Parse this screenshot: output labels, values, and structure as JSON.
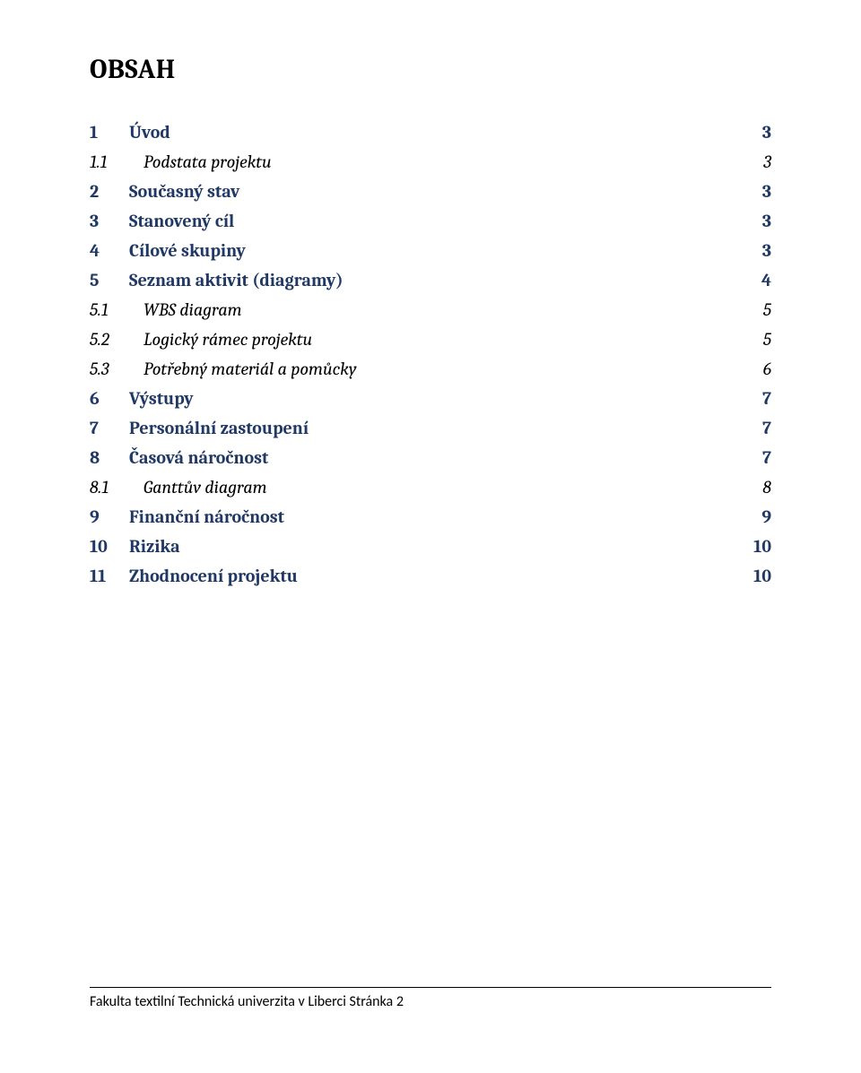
{
  "heading": "OBSAH",
  "toc": [
    {
      "num": "1",
      "title": "Úvod",
      "page": "3",
      "level": 1
    },
    {
      "num": "1.1",
      "title": "Podstata projektu",
      "page": "3",
      "level": 2
    },
    {
      "num": "2",
      "title": "Současný stav",
      "page": "3",
      "level": 1
    },
    {
      "num": "3",
      "title": "Stanovený cíl",
      "page": "3",
      "level": 1
    },
    {
      "num": "4",
      "title": "Cílové skupiny",
      "page": "3",
      "level": 1
    },
    {
      "num": "5",
      "title": "Seznam aktivit (diagramy)",
      "page": "4",
      "level": 1
    },
    {
      "num": "5.1",
      "title": "WBS diagram",
      "page": "5",
      "level": 2
    },
    {
      "num": "5.2",
      "title": "Logický rámec projektu",
      "page": "5",
      "level": 2
    },
    {
      "num": "5.3",
      "title": "Potřebný materiál a pomůcky",
      "page": "6",
      "level": 2
    },
    {
      "num": "6",
      "title": "Výstupy",
      "page": "7",
      "level": 1
    },
    {
      "num": "7",
      "title": "Personální zastoupení",
      "page": "7",
      "level": 1
    },
    {
      "num": "8",
      "title": "Časová náročnost",
      "page": "7",
      "level": 1
    },
    {
      "num": "8.1",
      "title": "Ganttův diagram",
      "page": "8",
      "level": 2
    },
    {
      "num": "9",
      "title": "Finanční náročnost",
      "page": "9",
      "level": 1
    },
    {
      "num": "10",
      "title": "Rizika",
      "page": "10",
      "level": 1
    },
    {
      "num": "11",
      "title": "Zhodnocení projektu",
      "page": "10",
      "level": 1
    }
  ],
  "footer": "Fakulta textilní Technická univerzita v Liberci   Stránka 2",
  "colors": {
    "toc_main": "#1f3864",
    "toc_sub": "#000000",
    "text": "#000000",
    "background": "#ffffff",
    "footer_border": "#000000"
  },
  "fonts": {
    "body": "Cambria",
    "footer": "Calibri",
    "heading_size_pt": 22,
    "toc_size_pt": 15,
    "footer_size_pt": 12
  }
}
